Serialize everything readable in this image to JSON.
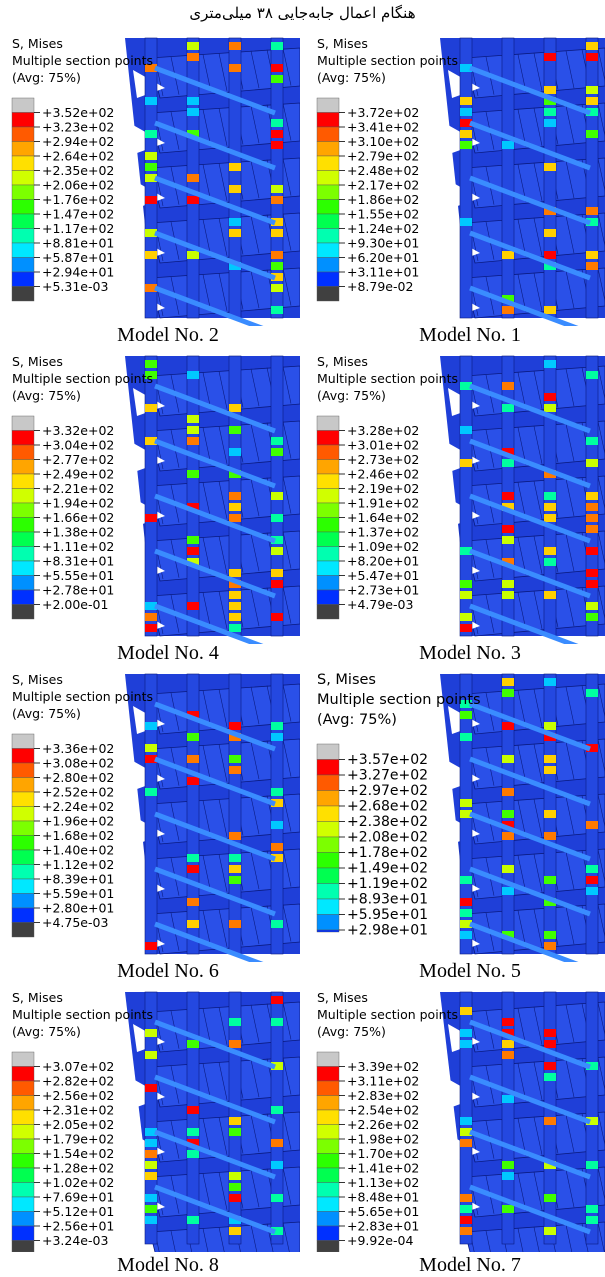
{
  "title": "هنگام اعمال جابه‌جایی ۳۸ میلی‌متری",
  "panels": [
    {
      "header": [
        "S, Mises",
        "Multiple section points",
        "(Avg: 75%)"
      ],
      "legend": [
        "+3.52e+02",
        "+3.23e+02",
        "+2.94e+02",
        "+2.64e+02",
        "+2.35e+02",
        "+2.06e+02",
        "+1.76e+02",
        "+1.47e+02",
        "+1.17e+02",
        "+8.81e+01",
        "+5.87e+01",
        "+2.94e+01",
        "+5.31e-03"
      ],
      "caption": "Model No. 2"
    },
    {
      "header": [
        "S, Mises",
        "Multiple section points",
        "(Avg: 75%)"
      ],
      "legend": [
        "+3.72e+02",
        "+3.41e+02",
        "+3.10e+02",
        "+2.79e+02",
        "+2.48e+02",
        "+2.17e+02",
        "+1.86e+02",
        "+1.55e+02",
        "+1.24e+02",
        "+9.30e+01",
        "+6.20e+01",
        "+3.11e+01",
        "+8.79e-02"
      ],
      "caption": "Model No. 1"
    },
    {
      "header": [
        "S, Mises",
        "Multiple section points",
        "(Avg: 75%)"
      ],
      "legend": [
        "+3.32e+02",
        "+3.04e+02",
        "+2.77e+02",
        "+2.49e+02",
        "+2.21e+02",
        "+1.94e+02",
        "+1.66e+02",
        "+1.38e+02",
        "+1.11e+02",
        "+8.31e+01",
        "+5.55e+01",
        "+2.78e+01",
        "+2.00e-01"
      ],
      "caption": "Model No. 4"
    },
    {
      "header": [
        "S, Mises",
        "Multiple section points",
        "(Avg: 75%)"
      ],
      "legend": [
        "+3.28e+02",
        "+3.01e+02",
        "+2.73e+02",
        "+2.46e+02",
        "+2.19e+02",
        "+1.91e+02",
        "+1.64e+02",
        "+1.37e+02",
        "+1.09e+02",
        "+8.20e+01",
        "+5.47e+01",
        "+2.73e+01",
        "+4.79e-03"
      ],
      "caption": "Model No. 3"
    },
    {
      "header": [
        "S, Mises",
        "Multiple section points",
        "(Avg: 75%)"
      ],
      "legend": [
        "+3.36e+02",
        "+3.08e+02",
        "+2.80e+02",
        "+2.52e+02",
        "+2.24e+02",
        "+1.96e+02",
        "+1.68e+02",
        "+1.40e+02",
        "+1.12e+02",
        "+8.39e+01",
        "+5.59e+01",
        "+2.80e+01",
        "+4.75e-03"
      ],
      "caption": "Model No. 6"
    },
    {
      "header": [
        "S, Mises",
        "Multiple section points",
        "(Avg: 75%)"
      ],
      "legend": [
        "+3.57e+02",
        "+3.27e+02",
        "+2.97e+02",
        "+2.68e+02",
        "+2.38e+02",
        "+2.08e+02",
        "+1.78e+02",
        "+1.49e+02",
        "+1.19e+02",
        "+8.93e+01",
        "+5.95e+01",
        "+2.98e+01"
      ],
      "caption": "Model No. 5"
    },
    {
      "header": [
        "S, Mises",
        "Multiple section points",
        "(Avg: 75%)"
      ],
      "legend": [
        "+3.07e+02",
        "+2.82e+02",
        "+2.56e+02",
        "+2.31e+02",
        "+2.05e+02",
        "+1.79e+02",
        "+1.54e+02",
        "+1.28e+02",
        "+1.02e+02",
        "+7.69e+01",
        "+5.12e+01",
        "+2.56e+01",
        "+3.24e-03"
      ],
      "caption": "Model No. 8"
    },
    {
      "header": [
        "S, Mises",
        "Multiple section points",
        "(Avg: 75%)"
      ],
      "legend": [
        "+3.39e+02",
        "+3.11e+02",
        "+2.83e+02",
        "+2.54e+02",
        "+2.26e+02",
        "+1.98e+02",
        "+1.70e+02",
        "+1.41e+02",
        "+1.13e+02",
        "+8.48e+01",
        "+5.65e+01",
        "+2.83e+01",
        "+9.92e-04"
      ],
      "caption": "Model No. 7"
    }
  ]
}
